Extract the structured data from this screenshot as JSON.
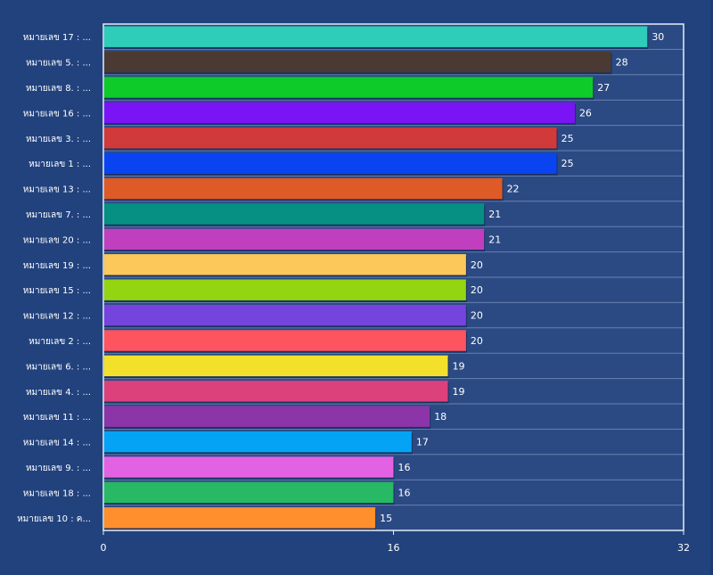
{
  "chart_data": {
    "type": "bar",
    "orientation": "horizontal",
    "title": "",
    "xlabel": "",
    "ylabel": "",
    "categories": [
      "หมายเลข 17 :  ...",
      "หมายเลข 5. :  ...",
      "หมายเลข 8. :  ...",
      "หมายเลข 16 :  ...",
      "หมายเลข 3. :  ...",
      "หมายเลข 1 : ...",
      "หมายเลข 13 :  ...",
      "หมายเลข 7. :  ...",
      "หมายเลข 20 :  ...",
      "หมายเลข 19 :  ...",
      "หมายเลข 15 :  ...",
      "หมายเลข 12 :  ...",
      "หมายเลข 2 :  ...",
      "หมายเลข 6. :  ...",
      "หมายเลข 4. :  ...",
      "หมายเลข 11 :  ...",
      "หมายเลข 14 :  ...",
      "หมายเลข 9. :  ...",
      "หมายเลข 18 :  ...",
      "หมายเลข 10 :  ค..."
    ],
    "values": [
      30,
      28,
      27,
      26,
      25,
      25,
      22,
      21,
      21,
      20,
      20,
      20,
      20,
      19,
      19,
      18,
      17,
      16,
      16,
      15
    ],
    "colors": [
      "#2ecdb9",
      "#4a3a33",
      "#0fcb2a",
      "#7a14f5",
      "#d13a3a",
      "#0a44f0",
      "#de5a26",
      "#069084",
      "#bf3fbf",
      "#fdc85a",
      "#92d510",
      "#7444dc",
      "#fe5460",
      "#f3e02a",
      "#dc417b",
      "#8b35a8",
      "#05a3f5",
      "#e362e3",
      "#27b964",
      "#fe8f2c"
    ],
    "xlim": [
      0,
      32
    ],
    "xticks": [
      0,
      16,
      32
    ],
    "grid": true,
    "legend": "none"
  }
}
